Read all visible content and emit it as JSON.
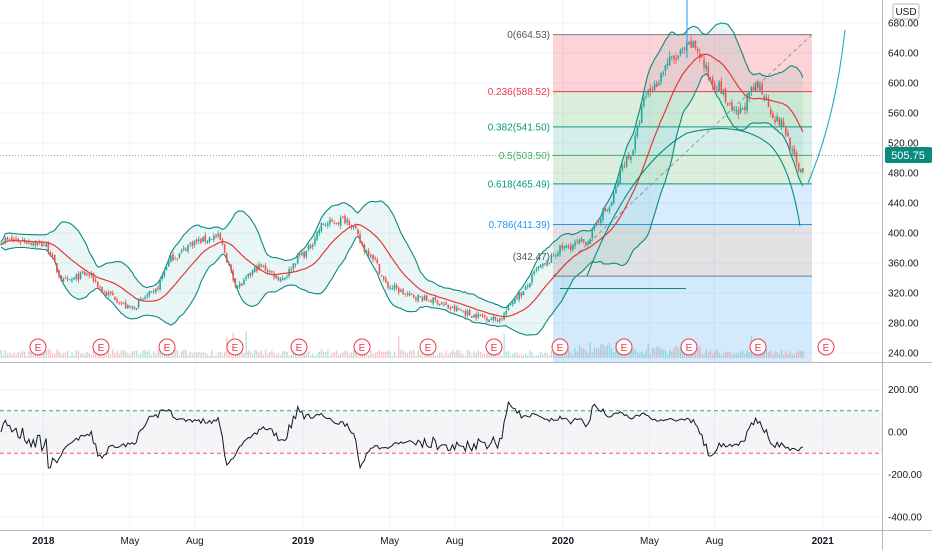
{
  "currency_label": "USD",
  "price_badge": "505.75",
  "colors": {
    "up": "#26a69a",
    "down": "#ef5350",
    "ma": "#e53935",
    "band": "#0b8a80",
    "band_fill": "#26a69a",
    "cci": "#131722",
    "cci_upper": "#26a69a",
    "cci_lower": "#ef5350",
    "badge": "#0b8a80"
  },
  "chart_data": [
    {
      "type": "candlestick",
      "title": "",
      "xlabel": "",
      "ylabel": "",
      "x_ticks": [
        "2018",
        "May",
        "Aug",
        "2019",
        "May",
        "Aug",
        "2020",
        "May",
        "Aug",
        "2021"
      ],
      "y_ticks": [
        "240.00",
        "280.00",
        "320.00",
        "360.00",
        "400.00",
        "440.00",
        "480.00",
        "520.00",
        "560.00",
        "600.00",
        "640.00",
        "680.00"
      ],
      "ylim": [
        230,
        695
      ],
      "last_price": 505.75,
      "overlays": [
        "bollinger-bands",
        "moving-average"
      ],
      "earnings_markers": [
        "E",
        "E",
        "E",
        "E",
        "E",
        "E",
        "E",
        "E",
        "E",
        "E",
        "E",
        "E",
        "E"
      ],
      "price_anchors": [
        {
          "x": "2017-12",
          "close": 390
        },
        {
          "x": "2018-01",
          "close": 385
        },
        {
          "x": "2018-02",
          "close": 335
        },
        {
          "x": "2018-03",
          "close": 345
        },
        {
          "x": "2018-04",
          "close": 318
        },
        {
          "x": "2018-05",
          "close": 300
        },
        {
          "x": "2018-06",
          "close": 318
        },
        {
          "x": "2018-07",
          "close": 368
        },
        {
          "x": "2018-08",
          "close": 388
        },
        {
          "x": "2018-09",
          "close": 395
        },
        {
          "x": "2018-10",
          "close": 330
        },
        {
          "x": "2018-11",
          "close": 355
        },
        {
          "x": "2018-12",
          "close": 340
        },
        {
          "x": "2019-01",
          "close": 372
        },
        {
          "x": "2019-02",
          "close": 412
        },
        {
          "x": "2019-03",
          "close": 418
        },
        {
          "x": "2019-04",
          "close": 375
        },
        {
          "x": "2019-05",
          "close": 328
        },
        {
          "x": "2019-06",
          "close": 316
        },
        {
          "x": "2019-07",
          "close": 310
        },
        {
          "x": "2019-08",
          "close": 298
        },
        {
          "x": "2019-09",
          "close": 290
        },
        {
          "x": "2019-10",
          "close": 285
        },
        {
          "x": "2019-11",
          "close": 318
        },
        {
          "x": "2019-12",
          "close": 355
        },
        {
          "x": "2020-01",
          "close": 380
        },
        {
          "x": "2020-02",
          "close": 388
        },
        {
          "x": "2020-03",
          "close": 430
        },
        {
          "x": "2020-04",
          "close": 500
        },
        {
          "x": "2020-05",
          "close": 590
        },
        {
          "x": "2020-06",
          "close": 630
        },
        {
          "x": "2020-07",
          "close": 650
        },
        {
          "x": "2020-08",
          "close": 600
        },
        {
          "x": "2020-09",
          "close": 558
        },
        {
          "x": "2020-10",
          "close": 595
        },
        {
          "x": "2020-11",
          "close": 548
        },
        {
          "x": "2020-12",
          "close": 485
        },
        {
          "x": "2021-01",
          "close": 505.75
        }
      ],
      "fibonacci": {
        "anchor_low_label": "(342.47)",
        "levels": [
          {
            "ratio": "0",
            "value": 664.53,
            "label": "0(664.53)"
          },
          {
            "ratio": "0.236",
            "value": 588.52,
            "label": "0.236(588.52)"
          },
          {
            "ratio": "0.382",
            "value": 541.5,
            "label": "0.382(541.50)"
          },
          {
            "ratio": "0.5",
            "value": 503.5,
            "label": "0.5(503.50)"
          },
          {
            "ratio": "0.618",
            "value": 465.49,
            "label": "0.618(465.49)"
          },
          {
            "ratio": "0.786",
            "value": 411.39,
            "label": "0.786(411.39)"
          },
          {
            "ratio": "1",
            "value": 342.47,
            "label": ""
          }
        ]
      }
    },
    {
      "type": "line",
      "title": "",
      "indicator": "cci",
      "y_ticks": [
        "200.00",
        "0.00",
        "-200.00",
        "-400.00"
      ],
      "ylim": [
        -430,
        260
      ],
      "upper_level": 100,
      "lower_level": -100
    }
  ]
}
